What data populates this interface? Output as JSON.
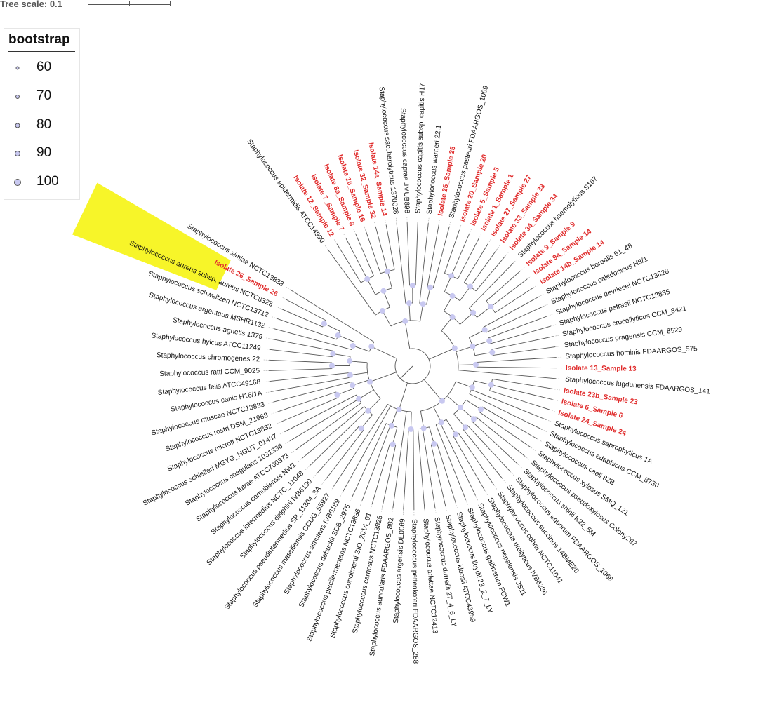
{
  "tree_scale": {
    "label": "Tree scale: 0.1",
    "value": 0.1
  },
  "legend": {
    "title": "bootstrap",
    "items": [
      {
        "label": "60",
        "value": 60
      },
      {
        "label": "70",
        "value": 70
      },
      {
        "label": "80",
        "value": 80
      },
      {
        "label": "90",
        "value": 90
      },
      {
        "label": "100",
        "value": 100
      }
    ]
  },
  "colors": {
    "branch": "#555555",
    "isolate_label": "#e02b2b",
    "species_label": "#111111",
    "bootstrap_fill": "#c8c8f0",
    "highlight": "#f7f529",
    "leader": "#aaaaaa"
  },
  "leaves": [
    {
      "label": "Staphylococcus epidermidis ATCC14990",
      "red": false
    },
    {
      "label": "Isolate 12_Sample 12",
      "red": true
    },
    {
      "label": "Isolate 7_Sample 7",
      "red": true
    },
    {
      "label": "Isolate 8a_Sample 8",
      "red": true
    },
    {
      "label": "Isolate 16_Sample 16",
      "red": true
    },
    {
      "label": "Isolate 32_Sample 32",
      "red": true
    },
    {
      "label": "Isolate 14a_Sample 14",
      "red": true
    },
    {
      "label": "Staphylococcus saccharolyticus 1370028",
      "red": false
    },
    {
      "label": "Staphylococcus caprae JMUB898",
      "red": false
    },
    {
      "label": "Staphylococcus capitis subsp. capitis H17",
      "red": false
    },
    {
      "label": "Staphylococcus warneri 22.1",
      "red": false
    },
    {
      "label": "Isolate 25_Sample 25",
      "red": true
    },
    {
      "label": "Staphylococcus pasteuri FDAARGOS_1069",
      "red": false
    },
    {
      "label": "Isolate 20_Sample 20",
      "red": true
    },
    {
      "label": "Isolate 5_Sample 5",
      "red": true
    },
    {
      "label": "Isolate 1_Sample 1",
      "red": true
    },
    {
      "label": "Isolate 27_Sample 27",
      "red": true
    },
    {
      "label": "Isolate 33_Sample 33",
      "red": true
    },
    {
      "label": "Isolate 34_Sample 34",
      "red": true
    },
    {
      "label": "Staphylococcus haemolyticus S167",
      "red": false
    },
    {
      "label": "Isolate 9_Sample 9",
      "red": true
    },
    {
      "label": "Isolate 9a_Sample 14",
      "red": true
    },
    {
      "label": "Isolate 14b_Sample 14",
      "red": true
    },
    {
      "label": "Staphylococcus borealis 51_48",
      "red": false
    },
    {
      "label": "Staphylococcus caledonicus H8/1",
      "red": false
    },
    {
      "label": "Staphylococcus devriesei NCTC13828",
      "red": false
    },
    {
      "label": "Staphylococcus petrasii NCTC13835",
      "red": false
    },
    {
      "label": "Staphylococcus croceilyticus CCM_8421",
      "red": false
    },
    {
      "label": "Staphylococcus pragensis CCM_8529",
      "red": false
    },
    {
      "label": "Staphylococcus hominis FDAARGOS_575",
      "red": false
    },
    {
      "label": "Isolate 13_Sample 13",
      "red": true
    },
    {
      "label": "Staphylococcus lugdunensis FDAARGOS_141",
      "red": false
    },
    {
      "label": "Isolate 23b_Sample 23",
      "red": true
    },
    {
      "label": "Isolate 6_Sample 6",
      "red": true
    },
    {
      "label": "Isolate 24_Sample 24",
      "red": true
    },
    {
      "label": "Staphylococcus saprophyticus 1A",
      "red": false
    },
    {
      "label": "Staphylococcus edaphicus CCM_8730",
      "red": false
    },
    {
      "label": "Staphylococcus caeli 82B",
      "red": false
    },
    {
      "label": "Staphylococcus xylosus SMQ_121",
      "red": false
    },
    {
      "label": "Staphylococcus pseudoxylosus Colony297",
      "red": false
    },
    {
      "label": "Staphylococcus shinii K22_5M",
      "red": false
    },
    {
      "label": "Staphylococcus equorum FDAARGOS_1068",
      "red": false
    },
    {
      "label": "Staphylococcus succinus 14BME20",
      "red": false
    },
    {
      "label": "Staphylococcus cohnii NCTC11041",
      "red": false
    },
    {
      "label": "Staphylococcus ureilyticus IVB6236",
      "red": false
    },
    {
      "label": "Staphylococcus nepalensis JS11",
      "red": false
    },
    {
      "label": "Staphylococcus gallinarum FCW1",
      "red": false
    },
    {
      "label": "Staphylococcus lloydii 23_2_7_LY",
      "red": false
    },
    {
      "label": "Staphylococcus kloosii ATCC43959",
      "red": false
    },
    {
      "label": "Staphylococcus durrellii 27_4_6_LY",
      "red": false
    },
    {
      "label": "Staphylococcus arlettae NCTC12413",
      "red": false
    },
    {
      "label": "Staphylococcus pettenkoferi FDAARGOS_288",
      "red": false
    },
    {
      "label": "Staphylococcus argensis DE0069",
      "red": false
    },
    {
      "label": "Staphylococcus auricularis FDAARGOS_882",
      "red": false
    },
    {
      "label": "Staphylococcus carnosus NCTC13825",
      "red": false
    },
    {
      "label": "Staphylococcus condimenti SIO_2014_01",
      "red": false
    },
    {
      "label": "Staphylococcus piscifermentans NCTC13836",
      "red": false
    },
    {
      "label": "Staphylococcus debuckii SDB_2975",
      "red": false
    },
    {
      "label": "Staphylococcus simulans IVB6189",
      "red": false
    },
    {
      "label": "Staphylococcus massiliensis CCUG_55927",
      "red": false
    },
    {
      "label": "Staphylococcus pseudintermedius SP_11304_3A",
      "red": false
    },
    {
      "label": "Staphylococcus delphini IVB6190",
      "red": false
    },
    {
      "label": "Staphylococcus intermedius NCTC_11048",
      "red": false
    },
    {
      "label": "Staphylococcus cornubiensis NW1",
      "red": false
    },
    {
      "label": "Staphylococcus lutrae ATCC700373",
      "red": false
    },
    {
      "label": "Staphylococcus coagulans 1031336",
      "red": false
    },
    {
      "label": "Staphylococcus schleiferi MGYG_HGUT_01437",
      "red": false
    },
    {
      "label": "Staphylococcus microti NCTC13832",
      "red": false
    },
    {
      "label": "Staphylococcus rostri DSM_21968",
      "red": false
    },
    {
      "label": "Staphylococcus muscae NCTC13833",
      "red": false
    },
    {
      "label": "Staphylococcus canis H16/1A",
      "red": false
    },
    {
      "label": "Staphylococcus felis ATCC49168",
      "red": false
    },
    {
      "label": "Staphylococcus ratti CCM_9025",
      "red": false
    },
    {
      "label": "Staphylococcus chromogenes 22",
      "red": false
    },
    {
      "label": "Staphylococcus hyicus ATCC11249",
      "red": false
    },
    {
      "label": "Staphylococcus agnetis 1379",
      "red": false
    },
    {
      "label": "Staphylococcus argenteus MSHR1132",
      "red": false
    },
    {
      "label": "Staphylococcus schweitzeri NCTC13712",
      "red": false
    },
    {
      "label": "Staphylococcus aureus subsp. aureus NCTC8325",
      "red": false,
      "highlight": true
    },
    {
      "label": "Isolate 26_Sample 26",
      "red": true,
      "highlight": true
    },
    {
      "label": "Staphylococcus simiae NCTC13838",
      "red": false
    }
  ]
}
